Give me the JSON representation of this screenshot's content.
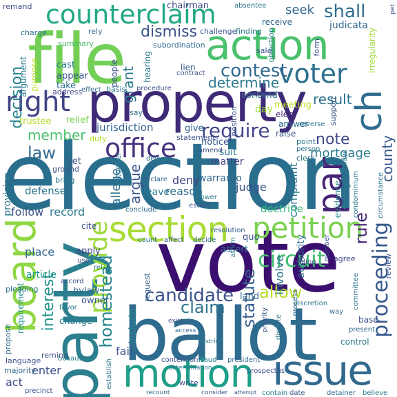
{
  "words": [
    {
      "text": "election",
      "color": "#2a6e8e"
    },
    {
      "text": "vote",
      "color": "#3b0f6f"
    },
    {
      "text": "ballot",
      "color": "#2f6b8e"
    },
    {
      "text": "property",
      "color": "#3e2a77"
    },
    {
      "text": "file",
      "color": "#73cf56"
    },
    {
      "text": "party",
      "color": "#2c7f8e"
    },
    {
      "text": "motion",
      "color": "#1f9e89"
    },
    {
      "text": "issue",
      "color": "#31688e"
    },
    {
      "text": "board",
      "color": "#8fd744"
    },
    {
      "text": "action",
      "color": "#4ac16d"
    },
    {
      "text": "counterclaim",
      "color": "#22a884"
    },
    {
      "text": "section",
      "color": "#a8db34"
    },
    {
      "text": "petition",
      "color": "#7ad151"
    },
    {
      "text": "voter",
      "color": "#2d708e"
    },
    {
      "text": "right",
      "color": "#414487"
    },
    {
      "text": "office",
      "color": "#46327e"
    },
    {
      "text": "ch",
      "color": "#2f6c8e"
    },
    {
      "text": "par",
      "color": "#482475"
    },
    {
      "text": "contest",
      "color": "#31688e"
    },
    {
      "text": "provide",
      "color": "#9bd93c"
    },
    {
      "text": "proceeding",
      "color": "#38588c"
    },
    {
      "text": "candidate",
      "color": "#3b528b"
    },
    {
      "text": "circuit",
      "color": "#42be71"
    },
    {
      "text": "claim",
      "color": "#2c728e"
    },
    {
      "text": "require",
      "color": "#404688"
    },
    {
      "text": "statute",
      "color": "#355f8d"
    },
    {
      "text": "determine",
      "color": "#2a788e"
    },
    {
      "text": "decision",
      "color": "#26828e"
    },
    {
      "text": "homestead",
      "color": "#25858e"
    },
    {
      "text": "interest",
      "color": "#21918c"
    },
    {
      "text": "rule",
      "color": "#482878"
    },
    {
      "text": "shall",
      "color": "#2e6f8e"
    },
    {
      "text": "seek",
      "color": "#31688e"
    },
    {
      "text": "dismiss",
      "color": "#3b528b"
    },
    {
      "text": "result",
      "color": "#2c728e"
    },
    {
      "text": "note",
      "color": "#3f4889"
    },
    {
      "text": "argue",
      "color": "#3b528b"
    },
    {
      "text": "law",
      "color": "#31688e"
    },
    {
      "text": "member",
      "color": "#4ac16d"
    },
    {
      "text": "county",
      "color": "#38588c"
    },
    {
      "text": "allow",
      "color": "#b5de2b"
    },
    {
      "text": "grant",
      "color": "#29798e"
    },
    {
      "text": "jurisdiction",
      "color": "#33638d"
    },
    {
      "text": "judicata",
      "color": "#31688e"
    },
    {
      "text": "suit",
      "color": "#2a788e"
    },
    {
      "text": "matter",
      "color": "#404688"
    },
    {
      "text": "allege",
      "color": "#2d708e"
    },
    {
      "text": "provision",
      "color": "#2a788e"
    },
    {
      "text": "mortgage",
      "color": "#287d8e"
    },
    {
      "text": "deny",
      "color": "#414487"
    },
    {
      "text": "reason",
      "color": "#2e6f8e"
    },
    {
      "text": "warranto",
      "color": "#31688e"
    },
    {
      "text": "judge",
      "color": "#3b528b"
    },
    {
      "text": "complaint",
      "color": "#2a788e"
    },
    {
      "text": "defense",
      "color": "#2c728e"
    },
    {
      "text": "follow",
      "color": "#3b528b"
    },
    {
      "text": "record",
      "color": "#2a788e"
    },
    {
      "text": "doctrine",
      "color": "#35b779"
    },
    {
      "text": "involve",
      "color": "#2a788e"
    },
    {
      "text": "authority",
      "color": "#2d708e"
    },
    {
      "text": "place",
      "color": "#31688e"
    },
    {
      "text": "apply",
      "color": "#3e4a89"
    },
    {
      "text": "include",
      "color": "#25858e"
    },
    {
      "text": "article",
      "color": "#1f968b"
    },
    {
      "text": "bylaw",
      "color": "#31688e"
    },
    {
      "text": "owner",
      "color": "#38588c"
    },
    {
      "text": "change",
      "color": "#2a788e"
    },
    {
      "text": "requirement",
      "color": "#21918c"
    },
    {
      "text": "land",
      "color": "#31688e"
    },
    {
      "text": "fail",
      "color": "#3b528b"
    },
    {
      "text": "enter",
      "color": "#3e4a89"
    },
    {
      "text": "act",
      "color": "#404688"
    },
    {
      "text": "cite",
      "color": "#3b528b"
    },
    {
      "text": "assert",
      "color": "#2c728e"
    },
    {
      "text": "request",
      "color": "#33638d"
    },
    {
      "text": "quo",
      "color": "#3b528b"
    },
    {
      "text": "leave",
      "color": "#2a788e"
    },
    {
      "text": "give",
      "color": "#33638d"
    },
    {
      "text": "notice",
      "color": "#38588c"
    },
    {
      "text": "set",
      "color": "#3b528b"
    },
    {
      "text": "relief",
      "color": "#7ad151"
    },
    {
      "text": "trustee",
      "color": "#b5de2b"
    },
    {
      "text": "meeting",
      "color": "#bddf26"
    },
    {
      "text": "elect",
      "color": "#482475"
    },
    {
      "text": "answer",
      "color": "#31688e"
    },
    {
      "text": "raise",
      "color": "#3b528b"
    },
    {
      "text": "evidence",
      "color": "#25858e"
    },
    {
      "text": "voting",
      "color": "#2a788e"
    },
    {
      "text": "agree",
      "color": "#3e4a89"
    },
    {
      "text": "contend",
      "color": "#2d708e"
    },
    {
      "text": "appear",
      "color": "#3b528b"
    },
    {
      "text": "cast",
      "color": "#2a788e"
    },
    {
      "text": "take",
      "color": "#2d708e"
    },
    {
      "text": "lien",
      "color": "#38588c"
    },
    {
      "text": "people",
      "color": "#3b528b"
    },
    {
      "text": "purpose",
      "color": "#b5de2b"
    },
    {
      "text": "argument",
      "color": "#29798e"
    },
    {
      "text": "chairman",
      "color": "#404688"
    },
    {
      "text": "remand",
      "color": "#3e4a89"
    },
    {
      "text": "absentee",
      "color": "#2c728e"
    },
    {
      "text": "receive",
      "color": "#31688e"
    },
    {
      "text": "objection",
      "color": "#2a788e"
    },
    {
      "text": "sale",
      "color": "#3b528b"
    },
    {
      "text": "irregularity",
      "color": "#a0da39"
    },
    {
      "text": "form",
      "color": "#3b528b"
    },
    {
      "text": "challenge",
      "color": "#3b528b"
    },
    {
      "text": "finding",
      "color": "#2a788e"
    },
    {
      "text": "subordination",
      "color": "#31688e"
    },
    {
      "text": "summary",
      "color": "#4ac16d"
    },
    {
      "text": "rely",
      "color": "#31688e"
    },
    {
      "text": "charge",
      "color": "#2d708e"
    },
    {
      "text": "hearing",
      "color": "#2a788e"
    },
    {
      "text": "contract",
      "color": "#3b528b"
    },
    {
      "text": "address",
      "color": "#404688"
    },
    {
      "text": "effect",
      "color": "#31688e"
    },
    {
      "text": "basis",
      "color": "#2a788e"
    },
    {
      "text": "procedure",
      "color": "#3b528b"
    },
    {
      "text": "say",
      "color": "#31688e"
    },
    {
      "text": "position",
      "color": "#3b528b"
    },
    {
      "text": "day",
      "color": "#a0da39"
    },
    {
      "text": "statement",
      "color": "#3b528b"
    },
    {
      "text": "support",
      "color": "#38588c"
    },
    {
      "text": "reverse",
      "color": "#2a788e"
    },
    {
      "text": "point",
      "color": "#2a788e"
    },
    {
      "text": "person",
      "color": "#2c728e"
    },
    {
      "text": "duty",
      "color": "#b5de2b"
    },
    {
      "text": "amend",
      "color": "#3b528b"
    },
    {
      "text": "clerk",
      "color": "#2a788e"
    },
    {
      "text": "deliver",
      "color": "#2d708e"
    },
    {
      "text": "condominium",
      "color": "#2a788e"
    },
    {
      "text": "number",
      "color": "#3b528b"
    },
    {
      "text": "circumstance",
      "color": "#2c728e"
    },
    {
      "text": "estoppel",
      "color": "#2a788e"
    },
    {
      "text": "declare",
      "color": "#31688e"
    },
    {
      "text": "power",
      "color": "#2a788e"
    },
    {
      "text": "estate",
      "color": "#3b528b"
    },
    {
      "text": "conclude",
      "color": "#31688e"
    },
    {
      "text": "ground",
      "color": "#3b528b"
    },
    {
      "text": "bring",
      "color": "#2a788e"
    },
    {
      "text": "resolution",
      "color": "#33638d"
    },
    {
      "text": "count",
      "color": "#2d708e"
    },
    {
      "text": "affect",
      "color": "#38588c"
    },
    {
      "text": "decide",
      "color": "#31688e"
    },
    {
      "text": "affirm",
      "color": "#2a788e"
    },
    {
      "text": "pleading",
      "color": "#2c728e"
    },
    {
      "text": "use",
      "color": "#3b528b"
    },
    {
      "text": "rel",
      "color": "#2a788e"
    },
    {
      "text": "process",
      "color": "#31688e"
    },
    {
      "text": "filing",
      "color": "#3b528b"
    },
    {
      "text": "committee",
      "color": "#2d708e"
    },
    {
      "text": "review",
      "color": "#3b528b"
    },
    {
      "text": "discretion",
      "color": "#2a788e"
    },
    {
      "text": "way",
      "color": "#31688e"
    },
    {
      "text": "accord",
      "color": "#3b528b"
    },
    {
      "text": "favor",
      "color": "#2a788e"
    },
    {
      "text": "exist",
      "color": "#3b528b"
    },
    {
      "text": "access",
      "color": "#31688e"
    },
    {
      "text": "district",
      "color": "#2a788e"
    },
    {
      "text": "priority",
      "color": "#3b528b"
    },
    {
      "text": "dispute",
      "color": "#2c728e"
    },
    {
      "text": "base",
      "color": "#3b528b"
    },
    {
      "text": "present",
      "color": "#31688e"
    },
    {
      "text": "control",
      "color": "#2a788e"
    },
    {
      "text": "remind",
      "color": "#3b528b"
    },
    {
      "text": "propose",
      "color": "#31688e"
    },
    {
      "text": "because",
      "color": "#2a788e"
    },
    {
      "text": "contention",
      "color": "#3b528b"
    },
    {
      "text": "fraud",
      "color": "#2a788e"
    },
    {
      "text": "president",
      "color": "#31688e"
    },
    {
      "text": "language",
      "color": "#3b528b"
    },
    {
      "text": "determination",
      "color": "#2a788e"
    },
    {
      "text": "prospectus",
      "color": "#3b528b"
    },
    {
      "text": "majority",
      "color": "#31688e"
    },
    {
      "text": "write",
      "color": "#3b528b"
    },
    {
      "text": "establish",
      "color": "#2a788e"
    },
    {
      "text": "precinct",
      "color": "#3b528b"
    },
    {
      "text": "recount",
      "color": "#31688e"
    },
    {
      "text": "consider",
      "color": "#3b528b"
    },
    {
      "text": "contain",
      "color": "#2a788e"
    },
    {
      "text": "date",
      "color": "#3b528b"
    },
    {
      "text": "detainer",
      "color": "#31688e"
    },
    {
      "text": "believe",
      "color": "#2a788e"
    },
    {
      "text": "attempt",
      "color": "#3b528b"
    },
    {
      "text": "law",
      "color": "#2a788e"
    },
    {
      "text": "pet",
      "color": "#3b528b"
    }
  ]
}
